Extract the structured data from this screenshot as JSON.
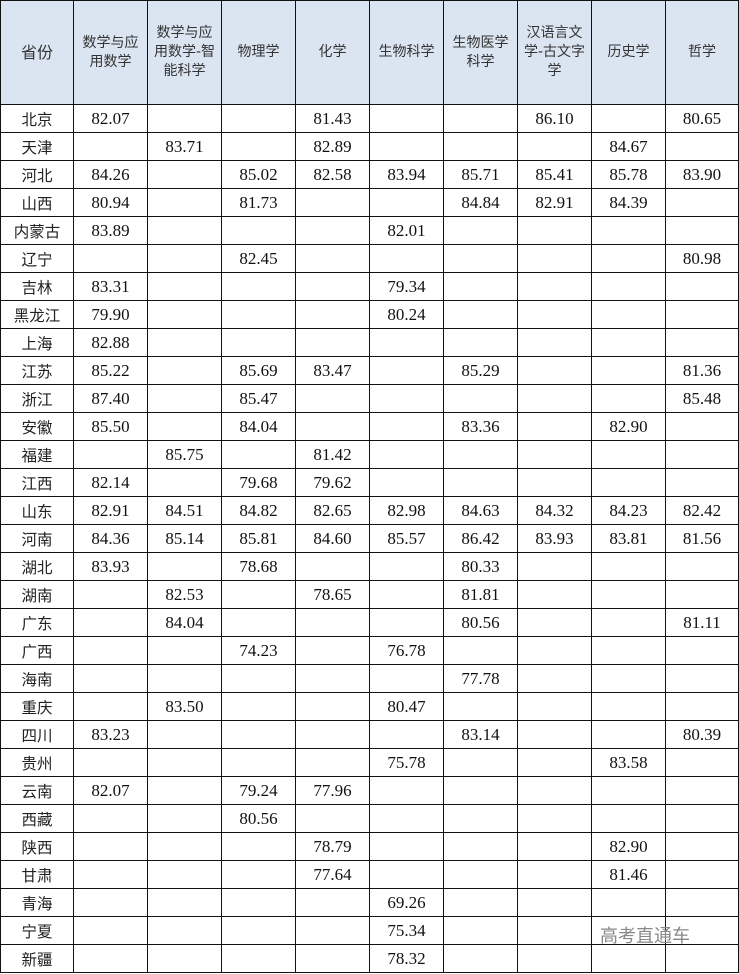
{
  "headers": [
    "省份",
    "数学与应用数学",
    "数学与应用数学-智能科学",
    "物理学",
    "化学",
    "生物科学",
    "生物医学科学",
    "汉语言文学-古文字学",
    "历史学",
    "哲学"
  ],
  "rows": [
    [
      "北京",
      "82.07",
      "",
      "",
      "81.43",
      "",
      "",
      "86.10",
      "",
      "80.65"
    ],
    [
      "天津",
      "",
      "83.71",
      "",
      "82.89",
      "",
      "",
      "",
      "84.67",
      ""
    ],
    [
      "河北",
      "84.26",
      "",
      "85.02",
      "82.58",
      "83.94",
      "85.71",
      "85.41",
      "85.78",
      "83.90"
    ],
    [
      "山西",
      "80.94",
      "",
      "81.73",
      "",
      "",
      "84.84",
      "82.91",
      "84.39",
      ""
    ],
    [
      "内蒙古",
      "83.89",
      "",
      "",
      "",
      "82.01",
      "",
      "",
      "",
      ""
    ],
    [
      "辽宁",
      "",
      "",
      "82.45",
      "",
      "",
      "",
      "",
      "",
      "80.98"
    ],
    [
      "吉林",
      "83.31",
      "",
      "",
      "",
      "79.34",
      "",
      "",
      "",
      ""
    ],
    [
      "黑龙江",
      "79.90",
      "",
      "",
      "",
      "80.24",
      "",
      "",
      "",
      ""
    ],
    [
      "上海",
      "82.88",
      "",
      "",
      "",
      "",
      "",
      "",
      "",
      ""
    ],
    [
      "江苏",
      "85.22",
      "",
      "85.69",
      "83.47",
      "",
      "85.29",
      "",
      "",
      "81.36"
    ],
    [
      "浙江",
      "87.40",
      "",
      "85.47",
      "",
      "",
      "",
      "",
      "",
      "85.48"
    ],
    [
      "安徽",
      "85.50",
      "",
      "84.04",
      "",
      "",
      "83.36",
      "",
      "82.90",
      ""
    ],
    [
      "福建",
      "",
      "85.75",
      "",
      "81.42",
      "",
      "",
      "",
      "",
      ""
    ],
    [
      "江西",
      "82.14",
      "",
      "79.68",
      "79.62",
      "",
      "",
      "",
      "",
      ""
    ],
    [
      "山东",
      "82.91",
      "84.51",
      "84.82",
      "82.65",
      "82.98",
      "84.63",
      "84.32",
      "84.23",
      "82.42"
    ],
    [
      "河南",
      "84.36",
      "85.14",
      "85.81",
      "84.60",
      "85.57",
      "86.42",
      "83.93",
      "83.81",
      "81.56"
    ],
    [
      "湖北",
      "83.93",
      "",
      "78.68",
      "",
      "",
      "80.33",
      "",
      "",
      ""
    ],
    [
      "湖南",
      "",
      "82.53",
      "",
      "78.65",
      "",
      "81.81",
      "",
      "",
      ""
    ],
    [
      "广东",
      "",
      "84.04",
      "",
      "",
      "",
      "80.56",
      "",
      "",
      "81.11"
    ],
    [
      "广西",
      "",
      "",
      "74.23",
      "",
      "76.78",
      "",
      "",
      "",
      ""
    ],
    [
      "海南",
      "",
      "",
      "",
      "",
      "",
      "77.78",
      "",
      "",
      ""
    ],
    [
      "重庆",
      "",
      "83.50",
      "",
      "",
      "80.47",
      "",
      "",
      "",
      ""
    ],
    [
      "四川",
      "83.23",
      "",
      "",
      "",
      "",
      "83.14",
      "",
      "",
      "80.39"
    ],
    [
      "贵州",
      "",
      "",
      "",
      "",
      "75.78",
      "",
      "",
      "83.58",
      ""
    ],
    [
      "云南",
      "82.07",
      "",
      "79.24",
      "77.96",
      "",
      "",
      "",
      "",
      ""
    ],
    [
      "西藏",
      "",
      "",
      "80.56",
      "",
      "",
      "",
      "",
      "",
      ""
    ],
    [
      "陕西",
      "",
      "",
      "",
      "78.79",
      "",
      "",
      "",
      "82.90",
      ""
    ],
    [
      "甘肃",
      "",
      "",
      "",
      "77.64",
      "",
      "",
      "",
      "81.46",
      ""
    ],
    [
      "青海",
      "",
      "",
      "",
      "",
      "69.26",
      "",
      "",
      "",
      ""
    ],
    [
      "宁夏",
      "",
      "",
      "",
      "",
      "75.34",
      "",
      "",
      "",
      ""
    ],
    [
      "新疆",
      "",
      "",
      "",
      "",
      "78.32",
      "",
      "",
      "",
      ""
    ]
  ],
  "watermark": "高考直通车",
  "colors": {
    "header_bg": "#dbe5f1"
  }
}
